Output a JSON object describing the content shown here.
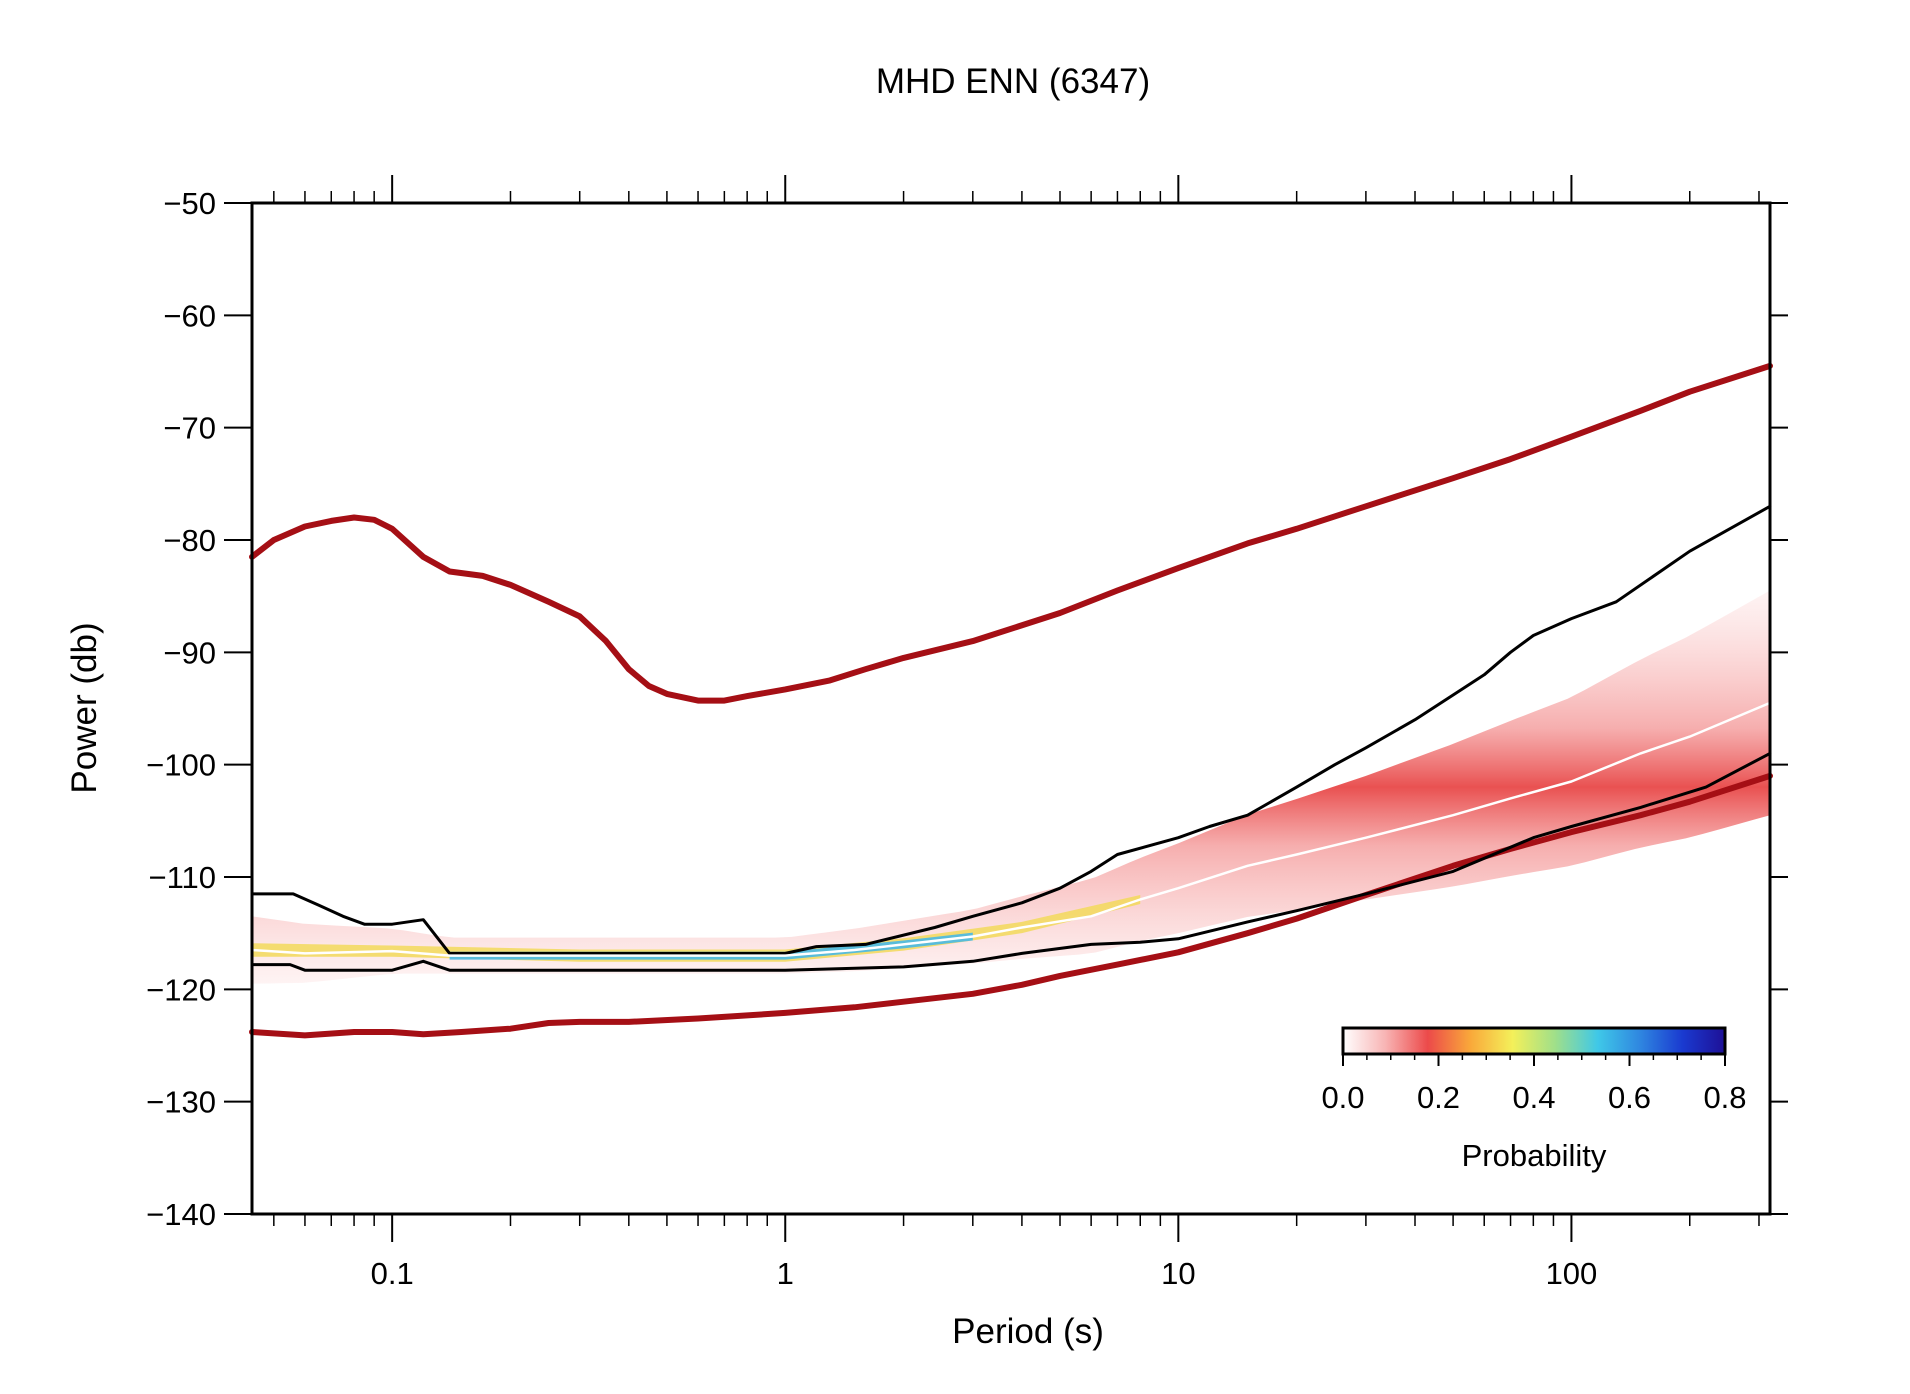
{
  "chart_data": {
    "type": "line",
    "title": "MHD ENN (6347)",
    "xlabel": "Period (s)",
    "ylabel": "Power (db)",
    "x_scale": "log",
    "xlim": [
      0.044,
      320
    ],
    "ylim": [
      -140,
      -50
    ],
    "x_ticks": [
      0.1,
      1,
      10,
      100
    ],
    "x_tick_labels": [
      "0.1",
      "1",
      "10",
      "100"
    ],
    "y_ticks": [
      -140,
      -130,
      -120,
      -110,
      -100,
      -90,
      -80,
      -70,
      -60,
      -50
    ],
    "y_tick_labels": [
      "−140",
      "−130",
      "−120",
      "−110",
      "−100",
      "−90",
      "−80",
      "−70",
      "−60",
      "−50"
    ],
    "grid": false,
    "series": [
      {
        "role": "high-noise-model",
        "color": "#a50f15",
        "points": [
          [
            0.044,
            -81.5
          ],
          [
            0.05,
            -80
          ],
          [
            0.06,
            -78.8
          ],
          [
            0.07,
            -78.3
          ],
          [
            0.08,
            -78
          ],
          [
            0.09,
            -78.2
          ],
          [
            0.1,
            -79
          ],
          [
            0.12,
            -81.5
          ],
          [
            0.14,
            -82.8
          ],
          [
            0.17,
            -83.2
          ],
          [
            0.2,
            -84
          ],
          [
            0.25,
            -85.5
          ],
          [
            0.3,
            -86.8
          ],
          [
            0.35,
            -89
          ],
          [
            0.4,
            -91.5
          ],
          [
            0.45,
            -93
          ],
          [
            0.5,
            -93.7
          ],
          [
            0.6,
            -94.3
          ],
          [
            0.7,
            -94.3
          ],
          [
            0.8,
            -93.9
          ],
          [
            1,
            -93.3
          ],
          [
            1.3,
            -92.5
          ],
          [
            1.6,
            -91.5
          ],
          [
            2,
            -90.5
          ],
          [
            3,
            -89
          ],
          [
            5,
            -86.5
          ],
          [
            7,
            -84.5
          ],
          [
            10,
            -82.5
          ],
          [
            15,
            -80.3
          ],
          [
            20,
            -79
          ],
          [
            30,
            -77
          ],
          [
            50,
            -74.5
          ],
          [
            70,
            -72.8
          ],
          [
            100,
            -70.8
          ],
          [
            150,
            -68.5
          ],
          [
            200,
            -66.8
          ],
          [
            320,
            -64.5
          ]
        ]
      },
      {
        "role": "low-noise-model",
        "color": "#a50f15",
        "points": [
          [
            0.044,
            -123.8
          ],
          [
            0.06,
            -124.1
          ],
          [
            0.08,
            -123.8
          ],
          [
            0.1,
            -123.8
          ],
          [
            0.12,
            -124
          ],
          [
            0.15,
            -123.8
          ],
          [
            0.2,
            -123.5
          ],
          [
            0.25,
            -123
          ],
          [
            0.3,
            -122.9
          ],
          [
            0.4,
            -122.9
          ],
          [
            0.6,
            -122.6
          ],
          [
            1,
            -122.1
          ],
          [
            1.5,
            -121.6
          ],
          [
            2,
            -121.1
          ],
          [
            3,
            -120.4
          ],
          [
            4,
            -119.6
          ],
          [
            5,
            -118.8
          ],
          [
            7,
            -117.8
          ],
          [
            10,
            -116.7
          ],
          [
            15,
            -115
          ],
          [
            20,
            -113.7
          ],
          [
            30,
            -111.6
          ],
          [
            50,
            -109
          ],
          [
            70,
            -107.5
          ],
          [
            100,
            -106
          ],
          [
            150,
            -104.5
          ],
          [
            200,
            -103.3
          ],
          [
            320,
            -101
          ]
        ]
      },
      {
        "role": "upper-percentile",
        "color": "#000000",
        "points": [
          [
            0.044,
            -111.5
          ],
          [
            0.056,
            -111.5
          ],
          [
            0.065,
            -112.5
          ],
          [
            0.075,
            -113.5
          ],
          [
            0.085,
            -114.2
          ],
          [
            0.1,
            -114.2
          ],
          [
            0.12,
            -113.8
          ],
          [
            0.14,
            -116.8
          ],
          [
            0.3,
            -116.8
          ],
          [
            1,
            -116.8
          ],
          [
            1.2,
            -116.2
          ],
          [
            1.6,
            -116
          ],
          [
            2.4,
            -114.5
          ],
          [
            3,
            -113.5
          ],
          [
            4,
            -112.3
          ],
          [
            5,
            -111
          ],
          [
            6,
            -109.5
          ],
          [
            7,
            -108
          ],
          [
            10,
            -106.5
          ],
          [
            12,
            -105.5
          ],
          [
            15,
            -104.5
          ],
          [
            20,
            -102
          ],
          [
            25,
            -100
          ],
          [
            30,
            -98.5
          ],
          [
            40,
            -96
          ],
          [
            50,
            -93.8
          ],
          [
            60,
            -92
          ],
          [
            70,
            -90
          ],
          [
            80,
            -88.5
          ],
          [
            100,
            -87
          ],
          [
            130,
            -85.5
          ],
          [
            200,
            -81
          ],
          [
            320,
            -77
          ]
        ]
      },
      {
        "role": "lower-percentile",
        "color": "#000000",
        "points": [
          [
            0.044,
            -117.8
          ],
          [
            0.055,
            -117.8
          ],
          [
            0.06,
            -118.3
          ],
          [
            0.1,
            -118.3
          ],
          [
            0.12,
            -117.5
          ],
          [
            0.14,
            -118.3
          ],
          [
            1,
            -118.3
          ],
          [
            2,
            -118
          ],
          [
            3,
            -117.5
          ],
          [
            4,
            -116.8
          ],
          [
            6,
            -116
          ],
          [
            8,
            -115.8
          ],
          [
            10,
            -115.5
          ],
          [
            15,
            -114
          ],
          [
            20,
            -113
          ],
          [
            30,
            -111.5
          ],
          [
            50,
            -109.5
          ],
          [
            80,
            -106.5
          ],
          [
            100,
            -105.5
          ],
          [
            150,
            -103.8
          ],
          [
            220,
            -102
          ],
          [
            320,
            -99
          ]
        ]
      },
      {
        "role": "mode",
        "color": "#ffffff",
        "points": [
          [
            0.044,
            -116.5
          ],
          [
            0.06,
            -116.8
          ],
          [
            0.1,
            -116.6
          ],
          [
            0.14,
            -117
          ],
          [
            0.5,
            -117
          ],
          [
            1,
            -117
          ],
          [
            1.5,
            -116.5
          ],
          [
            2,
            -116
          ],
          [
            3,
            -115.3
          ],
          [
            4,
            -114.5
          ],
          [
            6,
            -113.5
          ],
          [
            8,
            -112
          ],
          [
            10,
            -111
          ],
          [
            15,
            -109
          ],
          [
            20,
            -108
          ],
          [
            30,
            -106.5
          ],
          [
            50,
            -104.5
          ],
          [
            70,
            -103
          ],
          [
            100,
            -101.5
          ],
          [
            150,
            -99
          ],
          [
            200,
            -97.5
          ],
          [
            320,
            -94.5
          ]
        ]
      }
    ],
    "pdf_band": {
      "center": [
        [
          0.044,
          -116.5
        ],
        [
          0.06,
          -116.8
        ],
        [
          0.1,
          -116.6
        ],
        [
          0.14,
          -117
        ],
        [
          0.5,
          -117
        ],
        [
          1,
          -117
        ],
        [
          1.5,
          -116.5
        ],
        [
          2,
          -116
        ],
        [
          3,
          -115.3
        ],
        [
          4,
          -114.5
        ],
        [
          6,
          -113.5
        ],
        [
          8,
          -112
        ],
        [
          10,
          -111
        ],
        [
          15,
          -109
        ],
        [
          20,
          -108
        ],
        [
          30,
          -106.5
        ],
        [
          50,
          -104.5
        ],
        [
          70,
          -103
        ],
        [
          100,
          -101.5
        ],
        [
          150,
          -99
        ],
        [
          200,
          -97.5
        ],
        [
          320,
          -94.5
        ]
      ],
      "half_width": [
        [
          0.044,
          3.0
        ],
        [
          0.14,
          1.6
        ],
        [
          1,
          1.6
        ],
        [
          3,
          2.4
        ],
        [
          10,
          4
        ],
        [
          30,
          5.5
        ],
        [
          100,
          7.5
        ],
        [
          320,
          10
        ]
      ]
    },
    "colorbar": {
      "label": "Probability",
      "min": 0.0,
      "max": 0.8,
      "tick_labels": [
        "0.0",
        "0.2",
        "0.4",
        "0.6",
        "0.8"
      ],
      "stops": [
        "#ffffff",
        "#f8b4b4",
        "#ec4a4a",
        "#f9a83a",
        "#f4f05a",
        "#9fdf8a",
        "#3fc8e8",
        "#2f86e0",
        "#1a3ad0",
        "#1e1096"
      ],
      "placement": "lower-right"
    }
  }
}
